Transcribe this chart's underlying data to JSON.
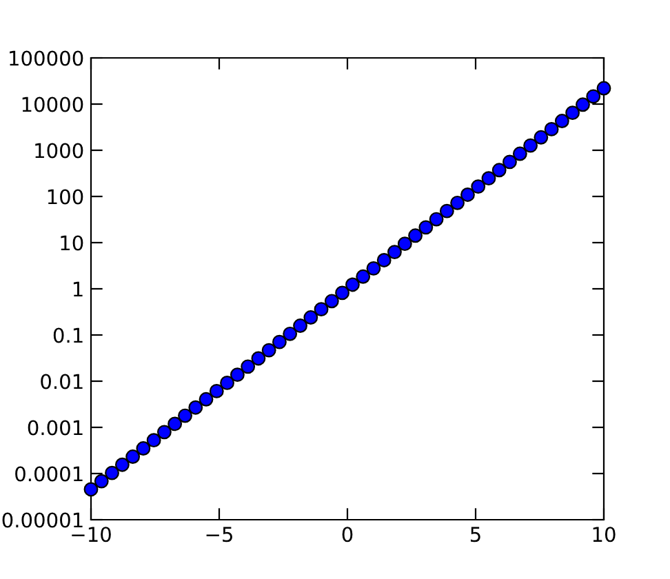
{
  "chart_data": {
    "type": "scatter",
    "log": "y",
    "marker": "circle",
    "grid": false,
    "xlim": [
      -10,
      10
    ],
    "ylim": [
      1e-05,
      100000
    ],
    "xticks": [
      {
        "value": -10,
        "label": "−10"
      },
      {
        "value": -5,
        "label": "−5"
      },
      0,
      5,
      10
    ],
    "yticks": [
      {
        "value": 1e-05,
        "label": "0.00001"
      },
      {
        "value": 0.0001,
        "label": "0.0001"
      },
      {
        "value": 0.001,
        "label": "0.001"
      },
      {
        "value": 0.01,
        "label": "0.01"
      },
      {
        "value": 0.1,
        "label": "0.1"
      },
      1,
      10,
      100,
      1000,
      10000,
      100000
    ],
    "x": [
      -10,
      -9.59,
      -9.18,
      -8.78,
      -8.37,
      -7.96,
      -7.55,
      -7.14,
      -6.73,
      -6.33,
      -5.92,
      -5.51,
      -5.1,
      -4.69,
      -4.29,
      -3.88,
      -3.47,
      -3.06,
      -2.65,
      -2.24,
      -1.84,
      -1.43,
      -1.02,
      -0.61,
      -0.2,
      0.2,
      0.61,
      1.02,
      1.43,
      1.84,
      2.24,
      2.65,
      3.06,
      3.47,
      3.88,
      4.29,
      4.69,
      5.1,
      5.51,
      5.92,
      6.33,
      6.73,
      7.14,
      7.55,
      7.96,
      8.37,
      8.78,
      9.18,
      9.59,
      10
    ],
    "series": [
      {
        "color": "#0000ff",
        "values": [
          4.54e-05,
          6.83e-05,
          0.000103,
          0.000155,
          0.000232,
          0.00035,
          0.000526,
          0.00079,
          0.00119,
          0.00179,
          0.00269,
          0.00405,
          0.0061,
          0.0092,
          0.0138,
          0.0207,
          0.0311,
          0.0468,
          0.0705,
          0.106,
          0.159,
          0.24,
          0.361,
          0.542,
          0.816,
          1.23,
          1.84,
          2.77,
          4.17,
          6.27,
          9.44,
          14.2,
          21.4,
          32.1,
          48.3,
          72.6,
          109,
          164,
          247,
          372,
          559,
          841,
          1265,
          1902,
          2861,
          4304,
          6473,
          9735,
          14640,
          22026
        ]
      }
    ]
  }
}
